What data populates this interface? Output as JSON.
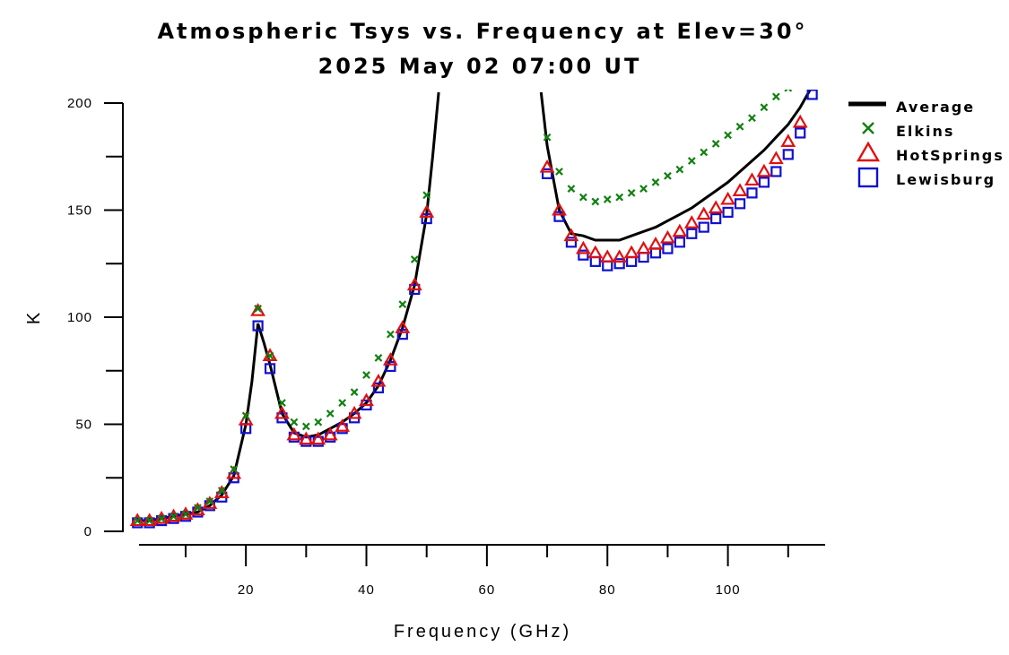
{
  "chart_data": {
    "type": "scatter",
    "title": "Atmospheric Tsys vs. Frequency at Elev=30°",
    "subtitle": "2025 May 02 07:00 UT",
    "xlabel": "Frequency (GHz)",
    "ylabel": "K",
    "xlim": [
      0,
      115
    ],
    "ylim": [
      0,
      200
    ],
    "x_ticks": [
      20,
      40,
      60,
      80,
      100
    ],
    "y_ticks": [
      0,
      50,
      100,
      150,
      200
    ],
    "legend_position": "top-right, outside plot",
    "series": [
      {
        "name": "Average",
        "style": "line",
        "color": "#000000",
        "x": [
          2,
          4,
          6,
          8,
          10,
          12,
          14,
          16,
          18,
          20,
          21,
          22,
          23,
          24,
          26,
          28,
          30,
          32,
          34,
          36,
          38,
          40,
          42,
          44,
          46,
          48,
          50,
          51,
          52,
          69,
          70,
          72,
          74,
          76,
          78,
          80,
          82,
          84,
          86,
          88,
          90,
          92,
          94,
          96,
          98,
          100,
          102,
          104,
          106,
          108,
          110,
          112,
          114
        ],
        "y": [
          5,
          5,
          6,
          7,
          8,
          9,
          12,
          17,
          26,
          50,
          70,
          97,
          88,
          78,
          55,
          46,
          44,
          45,
          48,
          51,
          55,
          60,
          68,
          80,
          95,
          115,
          148,
          175,
          205,
          205,
          180,
          150,
          139,
          138,
          136,
          136,
          136,
          138,
          140,
          142,
          145,
          148,
          151,
          155,
          159,
          163,
          168,
          173,
          178,
          184,
          190,
          198,
          208
        ]
      },
      {
        "name": "Elkins",
        "style": "marker-x",
        "color": "#108010",
        "x": [
          2,
          4,
          6,
          8,
          10,
          12,
          14,
          16,
          18,
          20,
          22,
          24,
          26,
          28,
          30,
          32,
          34,
          36,
          38,
          40,
          42,
          44,
          46,
          48,
          50,
          70,
          72,
          74,
          76,
          78,
          80,
          82,
          84,
          86,
          88,
          90,
          92,
          94,
          96,
          98,
          100,
          102,
          104,
          106,
          108,
          110
        ],
        "y": [
          5,
          5,
          6,
          7,
          8,
          11,
          14,
          19,
          29,
          54,
          104,
          82,
          60,
          51,
          49,
          51,
          55,
          60,
          65,
          73,
          81,
          92,
          106,
          127,
          157,
          184,
          168,
          160,
          156,
          154,
          155,
          156,
          158,
          160,
          163,
          166,
          169,
          173,
          177,
          181,
          185,
          189,
          193,
          198,
          203,
          207
        ]
      },
      {
        "name": "HotSprings",
        "style": "marker-triangle",
        "color": "#e01010",
        "x": [
          2,
          4,
          6,
          8,
          10,
          12,
          14,
          16,
          18,
          20,
          22,
          24,
          26,
          28,
          30,
          32,
          34,
          36,
          38,
          40,
          42,
          44,
          46,
          48,
          50,
          70,
          72,
          74,
          76,
          78,
          80,
          82,
          84,
          86,
          88,
          90,
          92,
          94,
          96,
          98,
          100,
          102,
          104,
          106,
          108,
          110,
          112
        ],
        "y": [
          5,
          5,
          6,
          7,
          8,
          10,
          13,
          18,
          27,
          52,
          103,
          82,
          55,
          45,
          43,
          43,
          45,
          49,
          55,
          61,
          70,
          80,
          95,
          115,
          149,
          170,
          150,
          138,
          132,
          130,
          128,
          128,
          130,
          132,
          134,
          137,
          140,
          144,
          148,
          151,
          155,
          159,
          164,
          168,
          174,
          182,
          191
        ]
      },
      {
        "name": "Lewisburg",
        "style": "marker-square",
        "color": "#1010d0",
        "x": [
          2,
          4,
          6,
          8,
          10,
          12,
          14,
          16,
          18,
          20,
          22,
          24,
          26,
          28,
          30,
          32,
          34,
          36,
          38,
          40,
          42,
          44,
          46,
          48,
          50,
          70,
          72,
          74,
          76,
          78,
          80,
          82,
          84,
          86,
          88,
          90,
          92,
          94,
          96,
          98,
          100,
          102,
          104,
          106,
          108,
          110,
          112,
          114
        ],
        "y": [
          4,
          4,
          5,
          6,
          7,
          9,
          12,
          16,
          25,
          48,
          96,
          76,
          53,
          44,
          42,
          42,
          44,
          48,
          53,
          59,
          67,
          77,
          92,
          113,
          146,
          167,
          147,
          135,
          129,
          126,
          124,
          125,
          126,
          128,
          130,
          132,
          135,
          139,
          142,
          146,
          149,
          153,
          158,
          163,
          168,
          176,
          186,
          204
        ]
      }
    ]
  }
}
